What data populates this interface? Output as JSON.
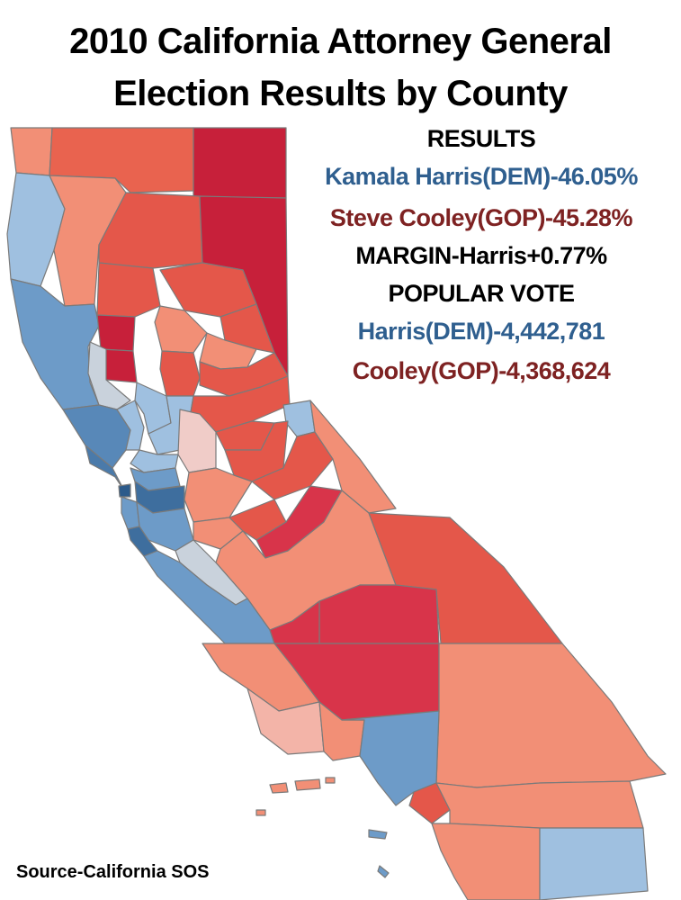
{
  "title": {
    "line1": "2010 California Attorney General",
    "line2": "Election Results by County"
  },
  "results": {
    "heading": "RESULTS",
    "harris_pct": "Kamala Harris(DEM)-46.05%",
    "cooley_pct": "Steve Cooley(GOP)-45.28%",
    "margin": "MARGIN-Harris+0.77%",
    "popular_heading": "POPULAR VOTE",
    "harris_votes": "Harris(DEM)-4,442,781",
    "cooley_votes": "Cooley(GOP)-4,368,624"
  },
  "source": "Source-California SOS",
  "colors": {
    "dem_text": "#2f5f8f",
    "gop_text": "#7e2222",
    "dem_strong": "#3e6e9e",
    "dem_mid": "#6d9bc8",
    "dem_light": "#9fc0e0",
    "tossup": "#c9d2dc",
    "gop_light": "#f3b4a8",
    "gop_mid": "#f28f76",
    "gop_strong": "#e4574a",
    "gop_deep": "#c7203a"
  }
}
